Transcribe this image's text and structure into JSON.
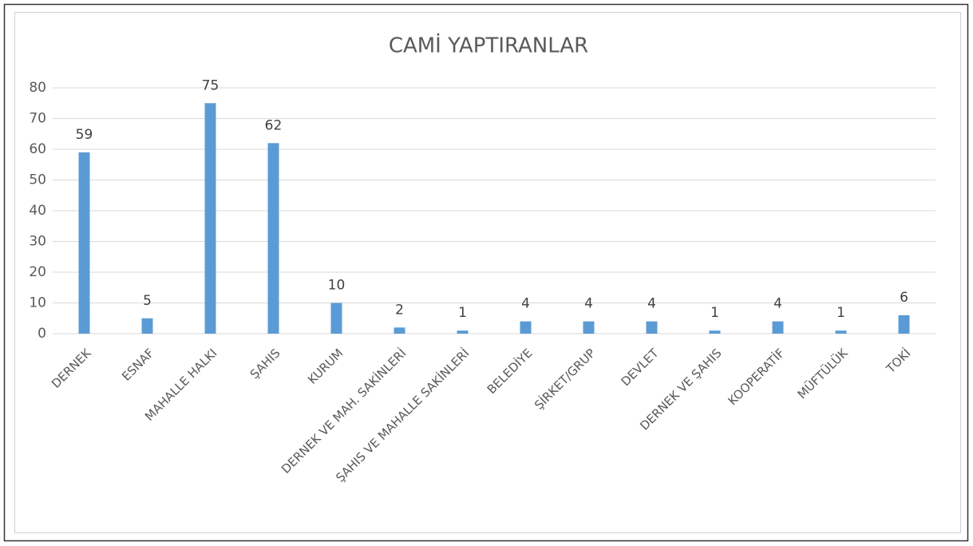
{
  "chart_data": {
    "type": "bar",
    "title": "CAMİ YAPTIRANLAR",
    "categories": [
      "DERNEK",
      "ESNAF",
      "MAHALLE HALKI",
      "ŞAHIS",
      "KURUM",
      "DERNEK VE MAH. SAKİNLERİ",
      "ŞAHIS VE MAHALLE SAKİNLERİ",
      "BELEDİYE",
      "ŞİRKET/GRUP",
      "DEVLET",
      "DERNEK VE ŞAHIS",
      "KOOPERATİF",
      "MÜFTÜLÜK",
      "TOKİ"
    ],
    "values": [
      59,
      5,
      75,
      62,
      10,
      2,
      1,
      4,
      4,
      4,
      1,
      4,
      1,
      6
    ],
    "color": "#5b9bd5",
    "ylim": [
      0,
      80
    ],
    "yticks": [
      0,
      10,
      20,
      30,
      40,
      50,
      60,
      70,
      80
    ],
    "grid": true,
    "data_labels": true
  }
}
